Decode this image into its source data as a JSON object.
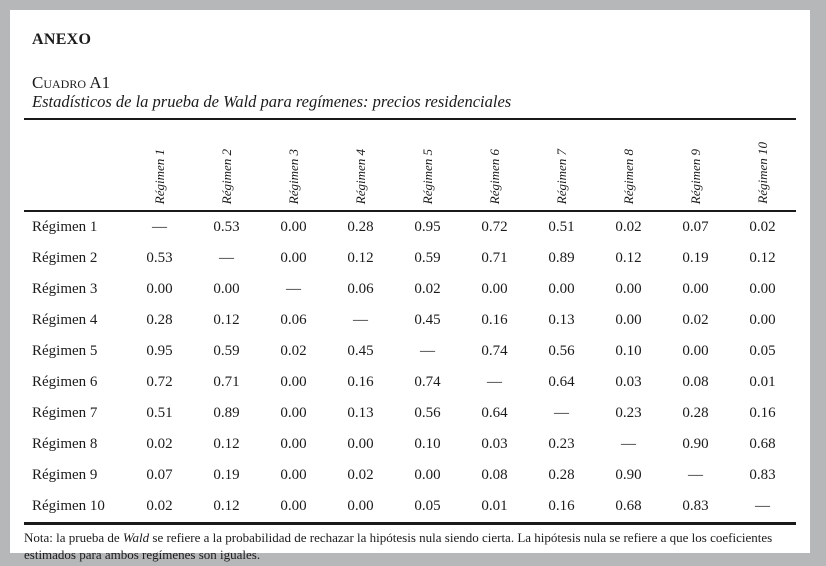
{
  "page": {
    "anexo_heading": "ANEXO",
    "table_label": "Cuadro A1",
    "table_title": "Estadísticos de la prueba de Wald para regímenes: precios residenciales"
  },
  "table": {
    "columns": [
      "Régimen 1",
      "Régimen 2",
      "Régimen 3",
      "Régimen 4",
      "Régimen 5",
      "Régimen 6",
      "Régimen 7",
      "Régimen 8",
      "Régimen 9",
      "Régimen 10"
    ],
    "rows": [
      {
        "label": "Régimen 1",
        "values": [
          "—",
          "0.53",
          "0.00",
          "0.28",
          "0.95",
          "0.72",
          "0.51",
          "0.02",
          "0.07",
          "0.02"
        ]
      },
      {
        "label": "Régimen 2",
        "values": [
          "0.53",
          "—",
          "0.00",
          "0.12",
          "0.59",
          "0.71",
          "0.89",
          "0.12",
          "0.19",
          "0.12"
        ]
      },
      {
        "label": "Régimen 3",
        "values": [
          "0.00",
          "0.00",
          "—",
          "0.06",
          "0.02",
          "0.00",
          "0.00",
          "0.00",
          "0.00",
          "0.00"
        ]
      },
      {
        "label": "Régimen 4",
        "values": [
          "0.28",
          "0.12",
          "0.06",
          "—",
          "0.45",
          "0.16",
          "0.13",
          "0.00",
          "0.02",
          "0.00"
        ]
      },
      {
        "label": "Régimen 5",
        "values": [
          "0.95",
          "0.59",
          "0.02",
          "0.45",
          "—",
          "0.74",
          "0.56",
          "0.10",
          "0.00",
          "0.05"
        ]
      },
      {
        "label": "Régimen 6",
        "values": [
          "0.72",
          "0.71",
          "0.00",
          "0.16",
          "0.74",
          "—",
          "0.64",
          "0.03",
          "0.08",
          "0.01"
        ]
      },
      {
        "label": "Régimen 7",
        "values": [
          "0.51",
          "0.89",
          "0.00",
          "0.13",
          "0.56",
          "0.64",
          "—",
          "0.23",
          "0.28",
          "0.16"
        ]
      },
      {
        "label": "Régimen 8",
        "values": [
          "0.02",
          "0.12",
          "0.00",
          "0.00",
          "0.10",
          "0.03",
          "0.23",
          "—",
          "0.90",
          "0.68"
        ]
      },
      {
        "label": "Régimen 9",
        "values": [
          "0.07",
          "0.19",
          "0.00",
          "0.02",
          "0.00",
          "0.08",
          "0.28",
          "0.90",
          "—",
          "0.83"
        ]
      },
      {
        "label": "Régimen 10",
        "values": [
          "0.02",
          "0.12",
          "0.00",
          "0.00",
          "0.05",
          "0.01",
          "0.16",
          "0.68",
          "0.83",
          "—"
        ]
      }
    ]
  },
  "note": {
    "prefix": "Nota: la prueba de ",
    "italic": "Wald",
    "suffix": " se refiere a la probabilidad de rechazar la hipótesis nula siendo cierta. La hipótesis nula se refiere a que los coeficientes estimados para ambos regímenes son iguales."
  },
  "colors": {
    "frame_background": "#b5b7b9",
    "page_background": "#ffffff",
    "text": "#1b1b1b",
    "rule": "#1a1a1a"
  }
}
